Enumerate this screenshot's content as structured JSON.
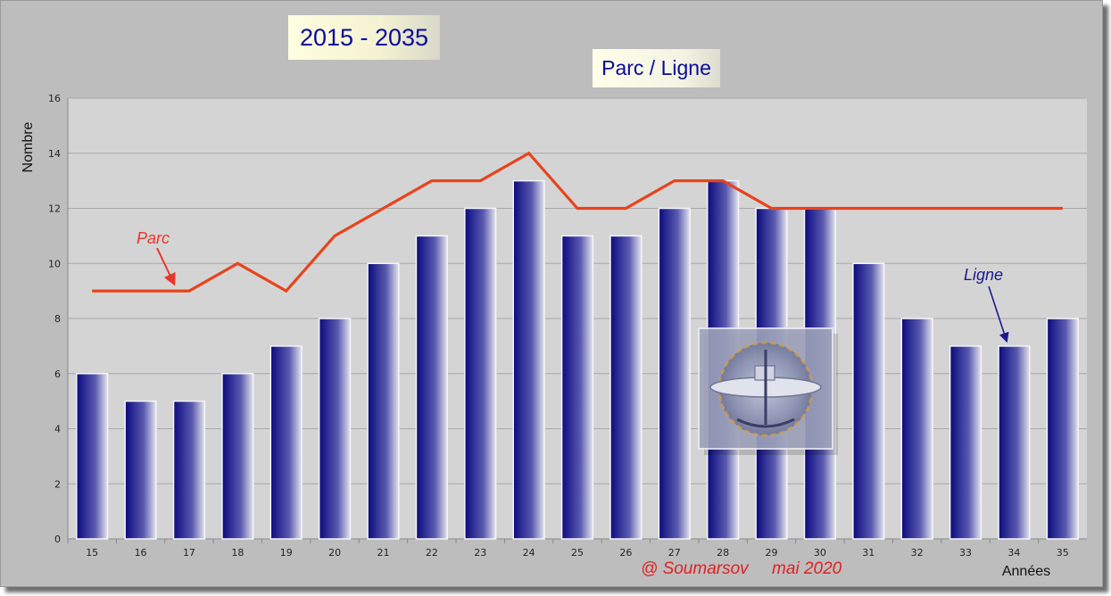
{
  "chart_data": {
    "type": "bar",
    "title": "Parc / Ligne",
    "subtitle": "2015 - 2035",
    "xlabel": "Années",
    "ylabel": "Nombre",
    "ylim": [
      0,
      16
    ],
    "yticks": [
      0,
      2,
      4,
      6,
      8,
      10,
      12,
      14,
      16
    ],
    "grid": true,
    "categories": [
      "15",
      "16",
      "17",
      "18",
      "19",
      "20",
      "21",
      "22",
      "23",
      "24",
      "25",
      "26",
      "27",
      "28",
      "29",
      "30",
      "31",
      "32",
      "33",
      "34",
      "35"
    ],
    "series": [
      {
        "name": "Ligne",
        "type": "bar",
        "color": "#0a0a7e",
        "values": [
          6,
          5,
          5,
          6,
          7,
          8,
          10,
          11,
          12,
          13,
          11,
          11,
          12,
          13,
          12,
          12,
          10,
          8,
          7,
          7,
          8
        ]
      },
      {
        "name": "Parc",
        "type": "line",
        "color": "#e8431c",
        "values": [
          9,
          9,
          9,
          10,
          9,
          11,
          12,
          13,
          13,
          14,
          12,
          12,
          13,
          13,
          12,
          12,
          12,
          12,
          12,
          12,
          12
        ]
      }
    ],
    "annotations": [
      {
        "text": "Parc",
        "color": "#e8352a"
      },
      {
        "text": "Ligne",
        "color": "#1a1a8c"
      }
    ],
    "credit": "@ Soumarsov     mai 2020"
  },
  "colors": {
    "frame_background": "#bdbdbd",
    "plot_background": "#d4d4d4",
    "gridline": "#a8a8a8",
    "title_text": "#0a0a9c"
  },
  "icons": {
    "emblem": "submarine-emblem-icon"
  }
}
